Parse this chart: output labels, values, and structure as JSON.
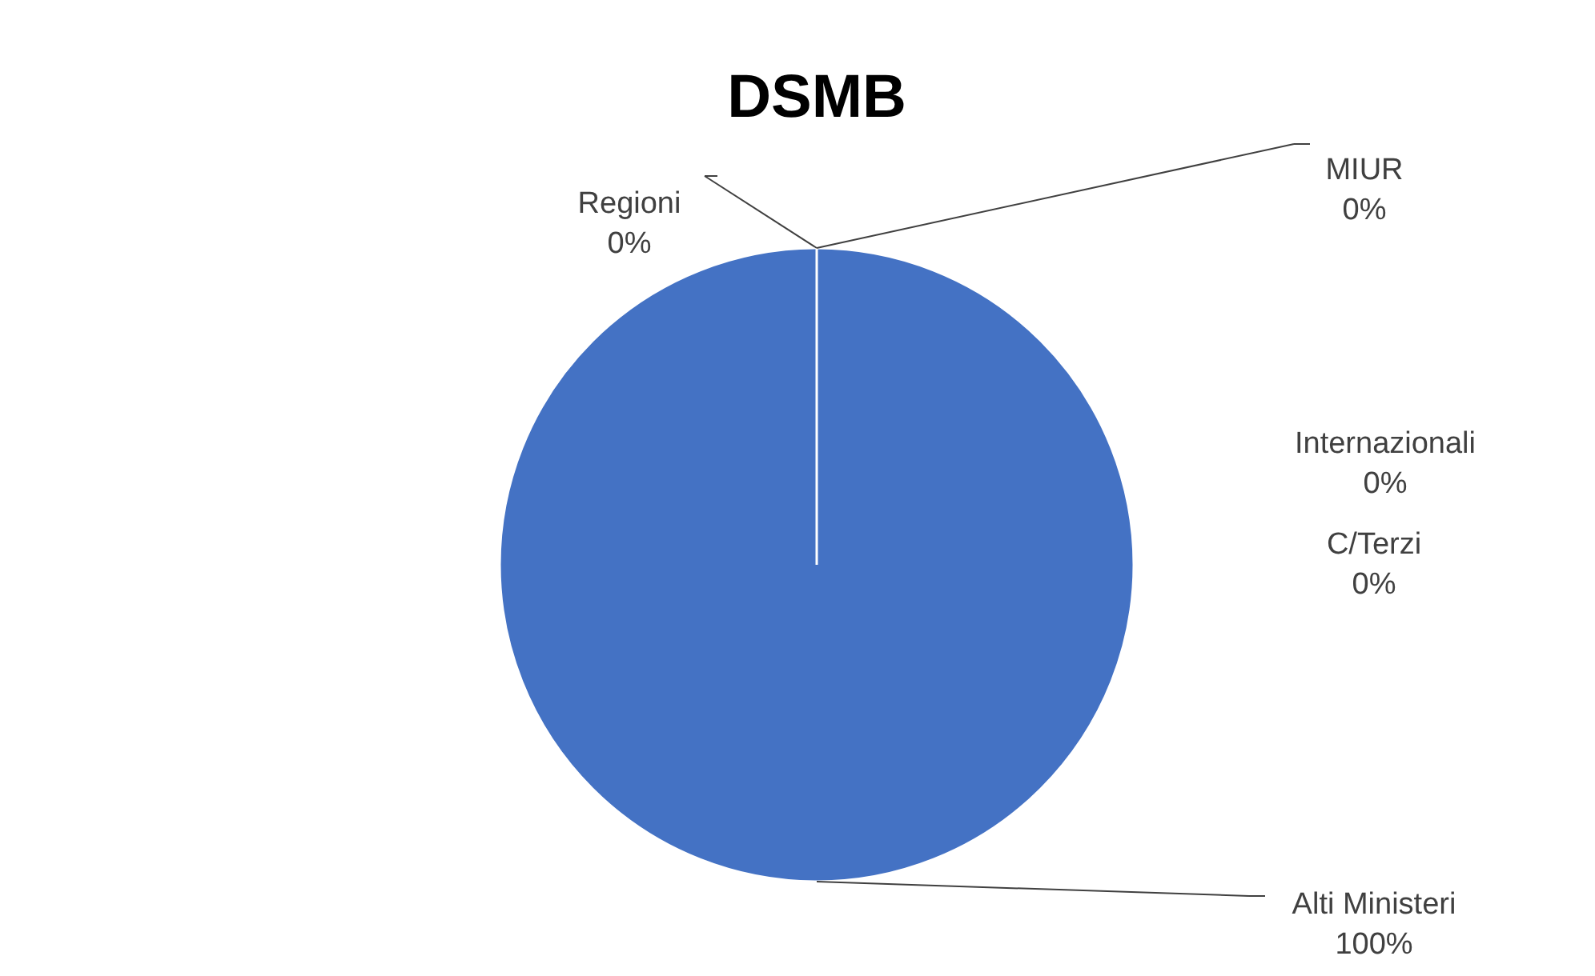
{
  "chart_data": {
    "type": "pie",
    "title": "DSMB",
    "categories": [
      "MIUR",
      "Internazionali",
      "C/Terzi",
      "Alti Ministeri",
      "Regioni"
    ],
    "values": [
      0,
      0,
      0,
      100,
      0
    ],
    "value_labels": [
      "0%",
      "0%",
      "0%",
      "100%",
      "0%"
    ],
    "colors": [
      "#ed7d31",
      "#a5a5a5",
      "#ffc000",
      "#4472c4",
      "#5b9bd5"
    ]
  }
}
